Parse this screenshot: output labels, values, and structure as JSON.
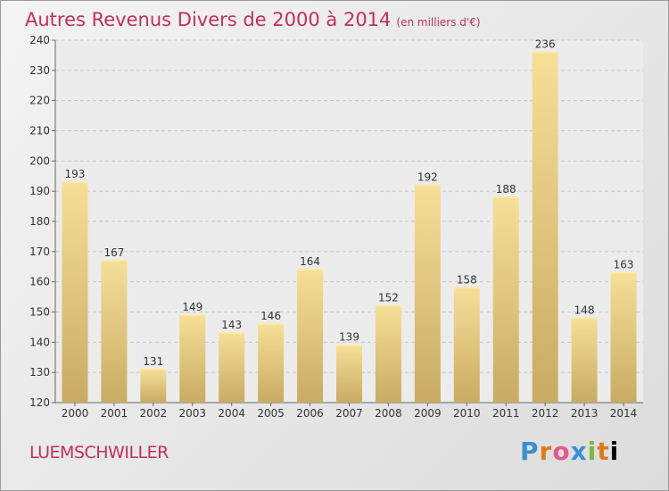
{
  "header": {
    "title": "Autres Revenus Divers de 2000 à 2014",
    "subtitle": "(en milliers d'€)"
  },
  "footer": {
    "commune": "LUEMSCHWILLER",
    "logo_text": "Proxiti"
  },
  "colors": {
    "title": "#c0305a",
    "bar_top": "#f6df97",
    "bar_bottom": "#c9ab63"
  },
  "chart_data": {
    "type": "bar",
    "categories": [
      "2000",
      "2001",
      "2002",
      "2003",
      "2004",
      "2005",
      "2006",
      "2007",
      "2008",
      "2009",
      "2010",
      "2011",
      "2012",
      "2013",
      "2014"
    ],
    "values": [
      193,
      167,
      131,
      149,
      143,
      146,
      164,
      139,
      152,
      192,
      158,
      188,
      236,
      148,
      163
    ],
    "title": "Autres Revenus Divers de 2000 à 2014",
    "subtitle": "(en milliers d'€)",
    "ylim": [
      120,
      240
    ],
    "yticks": [
      120,
      130,
      140,
      150,
      160,
      170,
      180,
      190,
      200,
      210,
      220,
      230,
      240
    ],
    "grid": "dashed-horizontal",
    "data_labels": true
  }
}
